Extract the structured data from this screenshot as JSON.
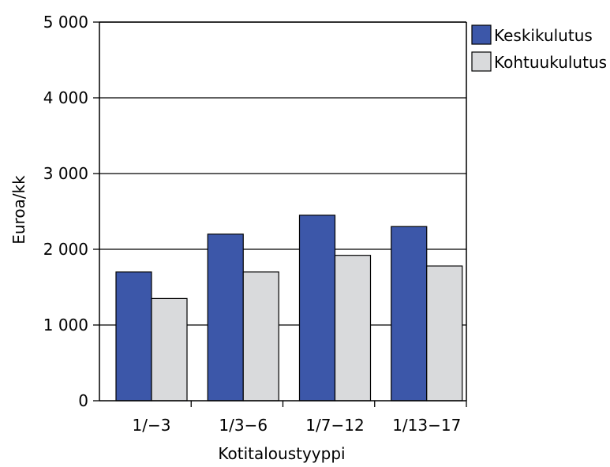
{
  "chart_data": {
    "type": "bar",
    "title": "",
    "xlabel": "Kotitaloustyyppi",
    "ylabel": "Euroa/kk",
    "categories": [
      "1/−3",
      "1/3−6",
      "1/7−12",
      "1/13−17"
    ],
    "series": [
      {
        "name": "Keskikulutus",
        "values": [
          1700,
          2200,
          2450,
          2300
        ],
        "color": "#3c57a9"
      },
      {
        "name": "Kohtuukulutus",
        "values": [
          1350,
          1700,
          1920,
          1780
        ],
        "color": "#d9dadc"
      }
    ],
    "ylim": [
      0,
      5000
    ],
    "yticks": [
      0,
      1000,
      2000,
      3000,
      4000,
      5000
    ],
    "ytick_labels": [
      "0",
      "1 000",
      "2 000",
      "3 000",
      "4 000",
      "5 000"
    ],
    "grid": true,
    "legend_position": "right-top"
  }
}
